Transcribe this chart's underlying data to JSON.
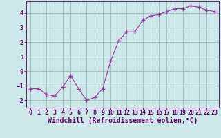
{
  "x": [
    0,
    1,
    2,
    3,
    4,
    5,
    6,
    7,
    8,
    9,
    10,
    11,
    12,
    13,
    14,
    15,
    16,
    17,
    18,
    19,
    20,
    21,
    22,
    23
  ],
  "y": [
    -1.2,
    -1.2,
    -1.6,
    -1.7,
    -1.1,
    -0.3,
    -1.2,
    -2.0,
    -1.8,
    -1.2,
    0.7,
    2.1,
    2.7,
    2.7,
    3.5,
    3.8,
    3.9,
    4.1,
    4.3,
    4.3,
    4.5,
    4.4,
    4.2,
    4.1
  ],
  "line_color": "#993399",
  "marker": "+",
  "marker_size": 4,
  "bg_color": "#cce8e8",
  "grid_color": "#99bbbb",
  "xlabel": "Windchill (Refroidissement éolien,°C)",
  "xlim": [
    -0.5,
    23.5
  ],
  "ylim": [
    -2.5,
    4.8
  ],
  "xticks": [
    0,
    1,
    2,
    3,
    4,
    5,
    6,
    7,
    8,
    9,
    10,
    11,
    12,
    13,
    14,
    15,
    16,
    17,
    18,
    19,
    20,
    21,
    22,
    23
  ],
  "yticks": [
    -2,
    -1,
    0,
    1,
    2,
    3,
    4
  ],
  "font_color": "#660066",
  "tick_label_size": 6.0,
  "xlabel_size": 7.0,
  "spine_color": "#660066"
}
